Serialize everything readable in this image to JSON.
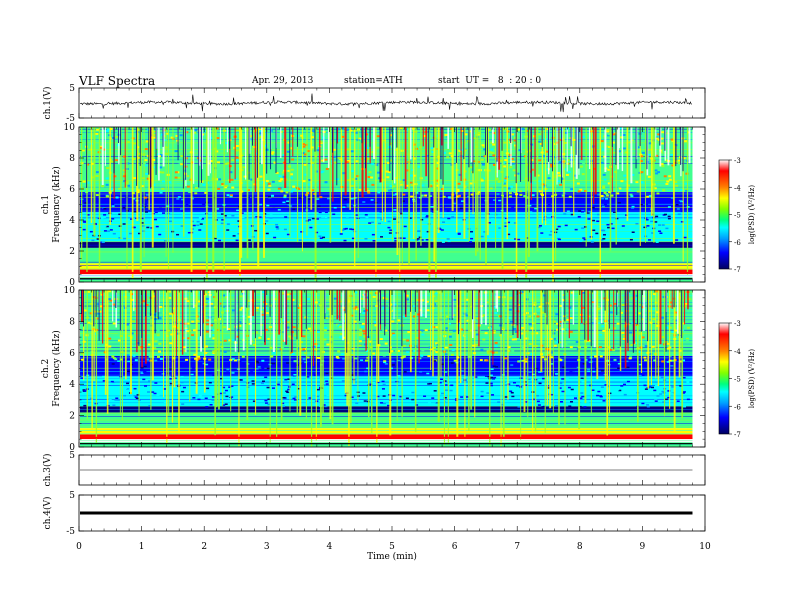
{
  "header": {
    "title": "VLF  Spectra",
    "date": "Apr. 29, 2013",
    "station": "station=ATH",
    "start": "start  UT =   8  : 20 : 0"
  },
  "chart_data": [
    {
      "type": "line",
      "name": "ch1-waveform",
      "ylabel": "ch.1(V)",
      "ylim": [
        -5,
        5
      ],
      "yticks": [
        "5",
        "-5"
      ],
      "baseline": 0,
      "xlim": [
        0,
        10
      ]
    },
    {
      "type": "heatmap",
      "name": "ch1-spectrogram",
      "ylabel_channel": "ch.1",
      "ylabel": "Frequency  (kHz)",
      "ylim": [
        0,
        10
      ],
      "yticks": [
        "0",
        "2",
        "4",
        "6",
        "8",
        "10"
      ],
      "xlim": [
        0,
        9.8
      ],
      "colorbar": {
        "label": "log(PSD) (V²/Hz)",
        "range": [
          -7,
          -3
        ],
        "ticks": [
          "-3",
          "-4",
          "-5",
          "-6",
          "-7"
        ]
      }
    },
    {
      "type": "heatmap",
      "name": "ch2-spectrogram",
      "ylabel_channel": "ch.2",
      "ylabel": "Frequency  (kHz)",
      "ylim": [
        0,
        10
      ],
      "yticks": [
        "0",
        "2",
        "4",
        "6",
        "8",
        "10"
      ],
      "xlim": [
        0,
        9.8
      ],
      "colorbar": {
        "label": "log(PSD) (V²/Hz)",
        "range": [
          -7,
          -3
        ],
        "ticks": [
          "-3",
          "-4",
          "-5",
          "-6",
          "-7"
        ]
      }
    },
    {
      "type": "line",
      "name": "ch3-waveform",
      "ylabel": "ch.3(V)",
      "ylim": [
        -5,
        5
      ],
      "yticks": [
        "5"
      ],
      "baseline": 0
    },
    {
      "type": "line",
      "name": "ch4-waveform",
      "ylabel": "ch.4(V)",
      "ylim": [
        -5,
        5
      ],
      "yticks": [
        "5",
        "-5"
      ],
      "baseline": 0
    }
  ],
  "xaxis": {
    "label": "Time  (min)",
    "ticks": [
      "0",
      "1",
      "2",
      "3",
      "4",
      "5",
      "6",
      "7",
      "8",
      "9",
      "10"
    ],
    "range": [
      0,
      10
    ]
  },
  "colors": {
    "c1": "#00007f",
    "c2": "#0000ff",
    "c3": "#00a0ff",
    "c4": "#00ffff",
    "c5": "#40ff90",
    "c6": "#a0ff20",
    "c7": "#ffff00",
    "c8": "#ff8000",
    "c9": "#ff0000",
    "c10": "#ffffff"
  }
}
